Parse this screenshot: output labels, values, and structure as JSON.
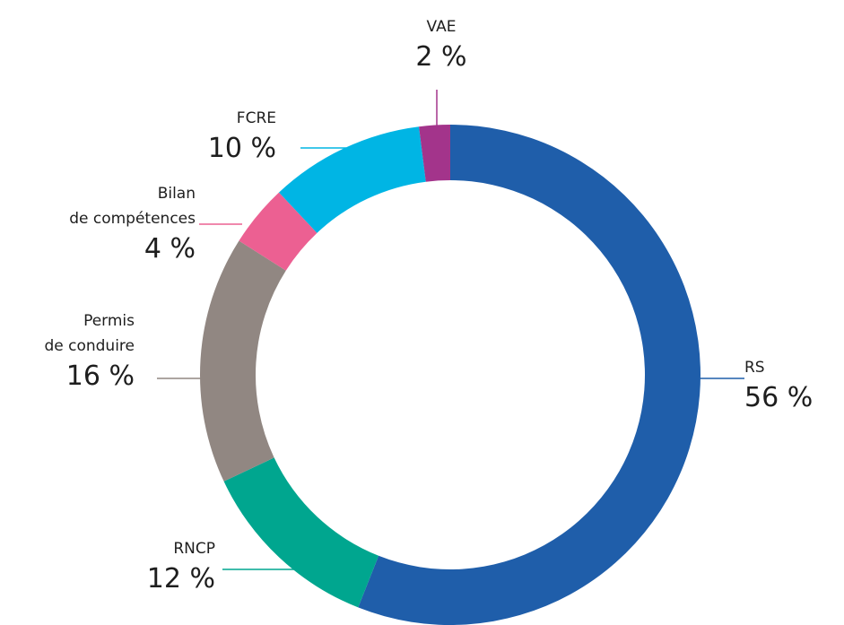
{
  "chart_data": {
    "type": "donut",
    "categories": [
      "RS",
      "RNCP",
      "Permis\nde conduire",
      "Bilan\nde compétences",
      "FCRE",
      "VAE"
    ],
    "values": [
      56,
      12,
      16,
      4,
      10,
      2
    ],
    "value_labels": [
      "56 %",
      "12 %",
      "16 %",
      "4 %",
      "10 %",
      "2 %"
    ],
    "colors": [
      "#1f5eaa",
      "#00a68f",
      "#918782",
      "#ec6092",
      "#00b5e4",
      "#a3348b"
    ]
  }
}
